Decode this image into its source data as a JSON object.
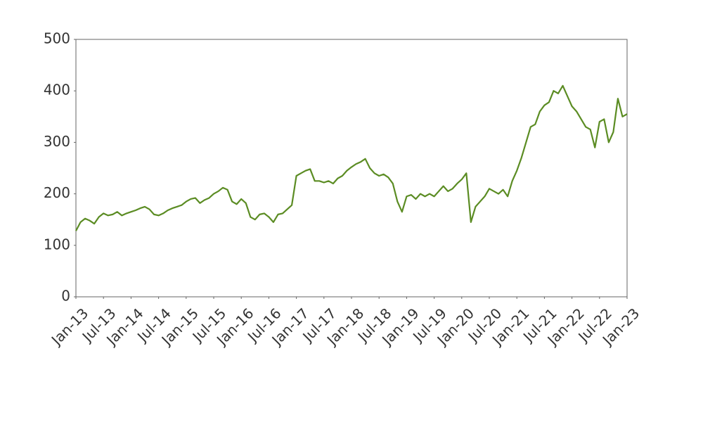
{
  "chart_data": {
    "type": "line",
    "x": [
      "2013-01",
      "2013-02",
      "2013-03",
      "2013-04",
      "2013-05",
      "2013-06",
      "2013-07",
      "2013-08",
      "2013-09",
      "2013-10",
      "2013-11",
      "2013-12",
      "2014-01",
      "2014-02",
      "2014-03",
      "2014-04",
      "2014-05",
      "2014-06",
      "2014-07",
      "2014-08",
      "2014-09",
      "2014-10",
      "2014-11",
      "2014-12",
      "2015-01",
      "2015-02",
      "2015-03",
      "2015-04",
      "2015-05",
      "2015-06",
      "2015-07",
      "2015-08",
      "2015-09",
      "2015-10",
      "2015-11",
      "2015-12",
      "2016-01",
      "2016-02",
      "2016-03",
      "2016-04",
      "2016-05",
      "2016-06",
      "2016-07",
      "2016-08",
      "2016-09",
      "2016-10",
      "2016-11",
      "2016-12",
      "2017-01",
      "2017-02",
      "2017-03",
      "2017-04",
      "2017-05",
      "2017-06",
      "2017-07",
      "2017-08",
      "2017-09",
      "2017-10",
      "2017-11",
      "2017-12",
      "2018-01",
      "2018-02",
      "2018-03",
      "2018-04",
      "2018-05",
      "2018-06",
      "2018-07",
      "2018-08",
      "2018-09",
      "2018-10",
      "2018-11",
      "2018-12",
      "2019-01",
      "2019-02",
      "2019-03",
      "2019-04",
      "2019-05",
      "2019-06",
      "2019-07",
      "2019-08",
      "2019-09",
      "2019-10",
      "2019-11",
      "2019-12",
      "2020-01",
      "2020-02",
      "2020-03",
      "2020-04",
      "2020-05",
      "2020-06",
      "2020-07",
      "2020-08",
      "2020-09",
      "2020-10",
      "2020-11",
      "2020-12",
      "2021-01",
      "2021-02",
      "2021-03",
      "2021-04",
      "2021-05",
      "2021-06",
      "2021-07",
      "2021-08",
      "2021-09",
      "2021-10",
      "2021-11",
      "2021-12",
      "2022-01",
      "2022-02",
      "2022-03",
      "2022-04",
      "2022-05",
      "2022-06",
      "2022-07",
      "2022-08",
      "2022-09",
      "2022-10",
      "2022-11",
      "2022-12",
      "2023-01"
    ],
    "series": [
      {
        "color": "#5b8c23",
        "values": [
          128,
          145,
          152,
          148,
          142,
          155,
          162,
          158,
          160,
          165,
          158,
          162,
          165,
          168,
          172,
          175,
          170,
          160,
          158,
          162,
          168,
          172,
          175,
          178,
          185,
          190,
          192,
          182,
          188,
          192,
          200,
          205,
          212,
          208,
          185,
          180,
          190,
          182,
          155,
          150,
          160,
          162,
          155,
          145,
          160,
          162,
          170,
          178,
          235,
          240,
          245,
          248,
          225,
          225,
          222,
          225,
          220,
          230,
          235,
          245,
          252,
          258,
          262,
          268,
          250,
          240,
          235,
          238,
          232,
          220,
          185,
          165,
          195,
          198,
          190,
          200,
          195,
          200,
          195,
          205,
          215,
          205,
          210,
          220,
          228,
          240,
          145,
          175,
          185,
          195,
          210,
          205,
          200,
          208,
          195,
          225,
          245,
          270,
          300,
          330,
          335,
          360,
          372,
          378,
          400,
          395,
          410,
          390,
          370,
          360,
          345,
          330,
          325,
          290,
          340,
          345,
          300,
          320,
          385,
          350,
          355
        ]
      }
    ],
    "xlim": [
      "2013-01",
      "2023-01"
    ],
    "xticks": [
      {
        "value": "2013-01",
        "label": "Jan-13"
      },
      {
        "value": "2013-07",
        "label": "Jul-13"
      },
      {
        "value": "2014-01",
        "label": "Jan-14"
      },
      {
        "value": "2014-07",
        "label": "Jul-14"
      },
      {
        "value": "2015-01",
        "label": "Jan-15"
      },
      {
        "value": "2015-07",
        "label": "Jul-15"
      },
      {
        "value": "2016-01",
        "label": "Jan-16"
      },
      {
        "value": "2016-07",
        "label": "Jul-16"
      },
      {
        "value": "2017-01",
        "label": "Jan-17"
      },
      {
        "value": "2017-07",
        "label": "Jul-17"
      },
      {
        "value": "2018-01",
        "label": "Jan-18"
      },
      {
        "value": "2018-07",
        "label": "Jul-18"
      },
      {
        "value": "2019-01",
        "label": "Jan-19"
      },
      {
        "value": "2019-07",
        "label": "Jul-19"
      },
      {
        "value": "2020-01",
        "label": "Jan-20"
      },
      {
        "value": "2020-07",
        "label": "Jul-20"
      },
      {
        "value": "2021-01",
        "label": "Jan-21"
      },
      {
        "value": "2021-07",
        "label": "Jul-21"
      },
      {
        "value": "2022-01",
        "label": "Jan-22"
      },
      {
        "value": "2022-07",
        "label": "Jul-22"
      },
      {
        "value": "2023-01",
        "label": "Jan-23"
      }
    ],
    "ylim": [
      0,
      500
    ],
    "yticks": [
      0,
      100,
      200,
      300,
      400,
      500
    ],
    "grid": false
  }
}
